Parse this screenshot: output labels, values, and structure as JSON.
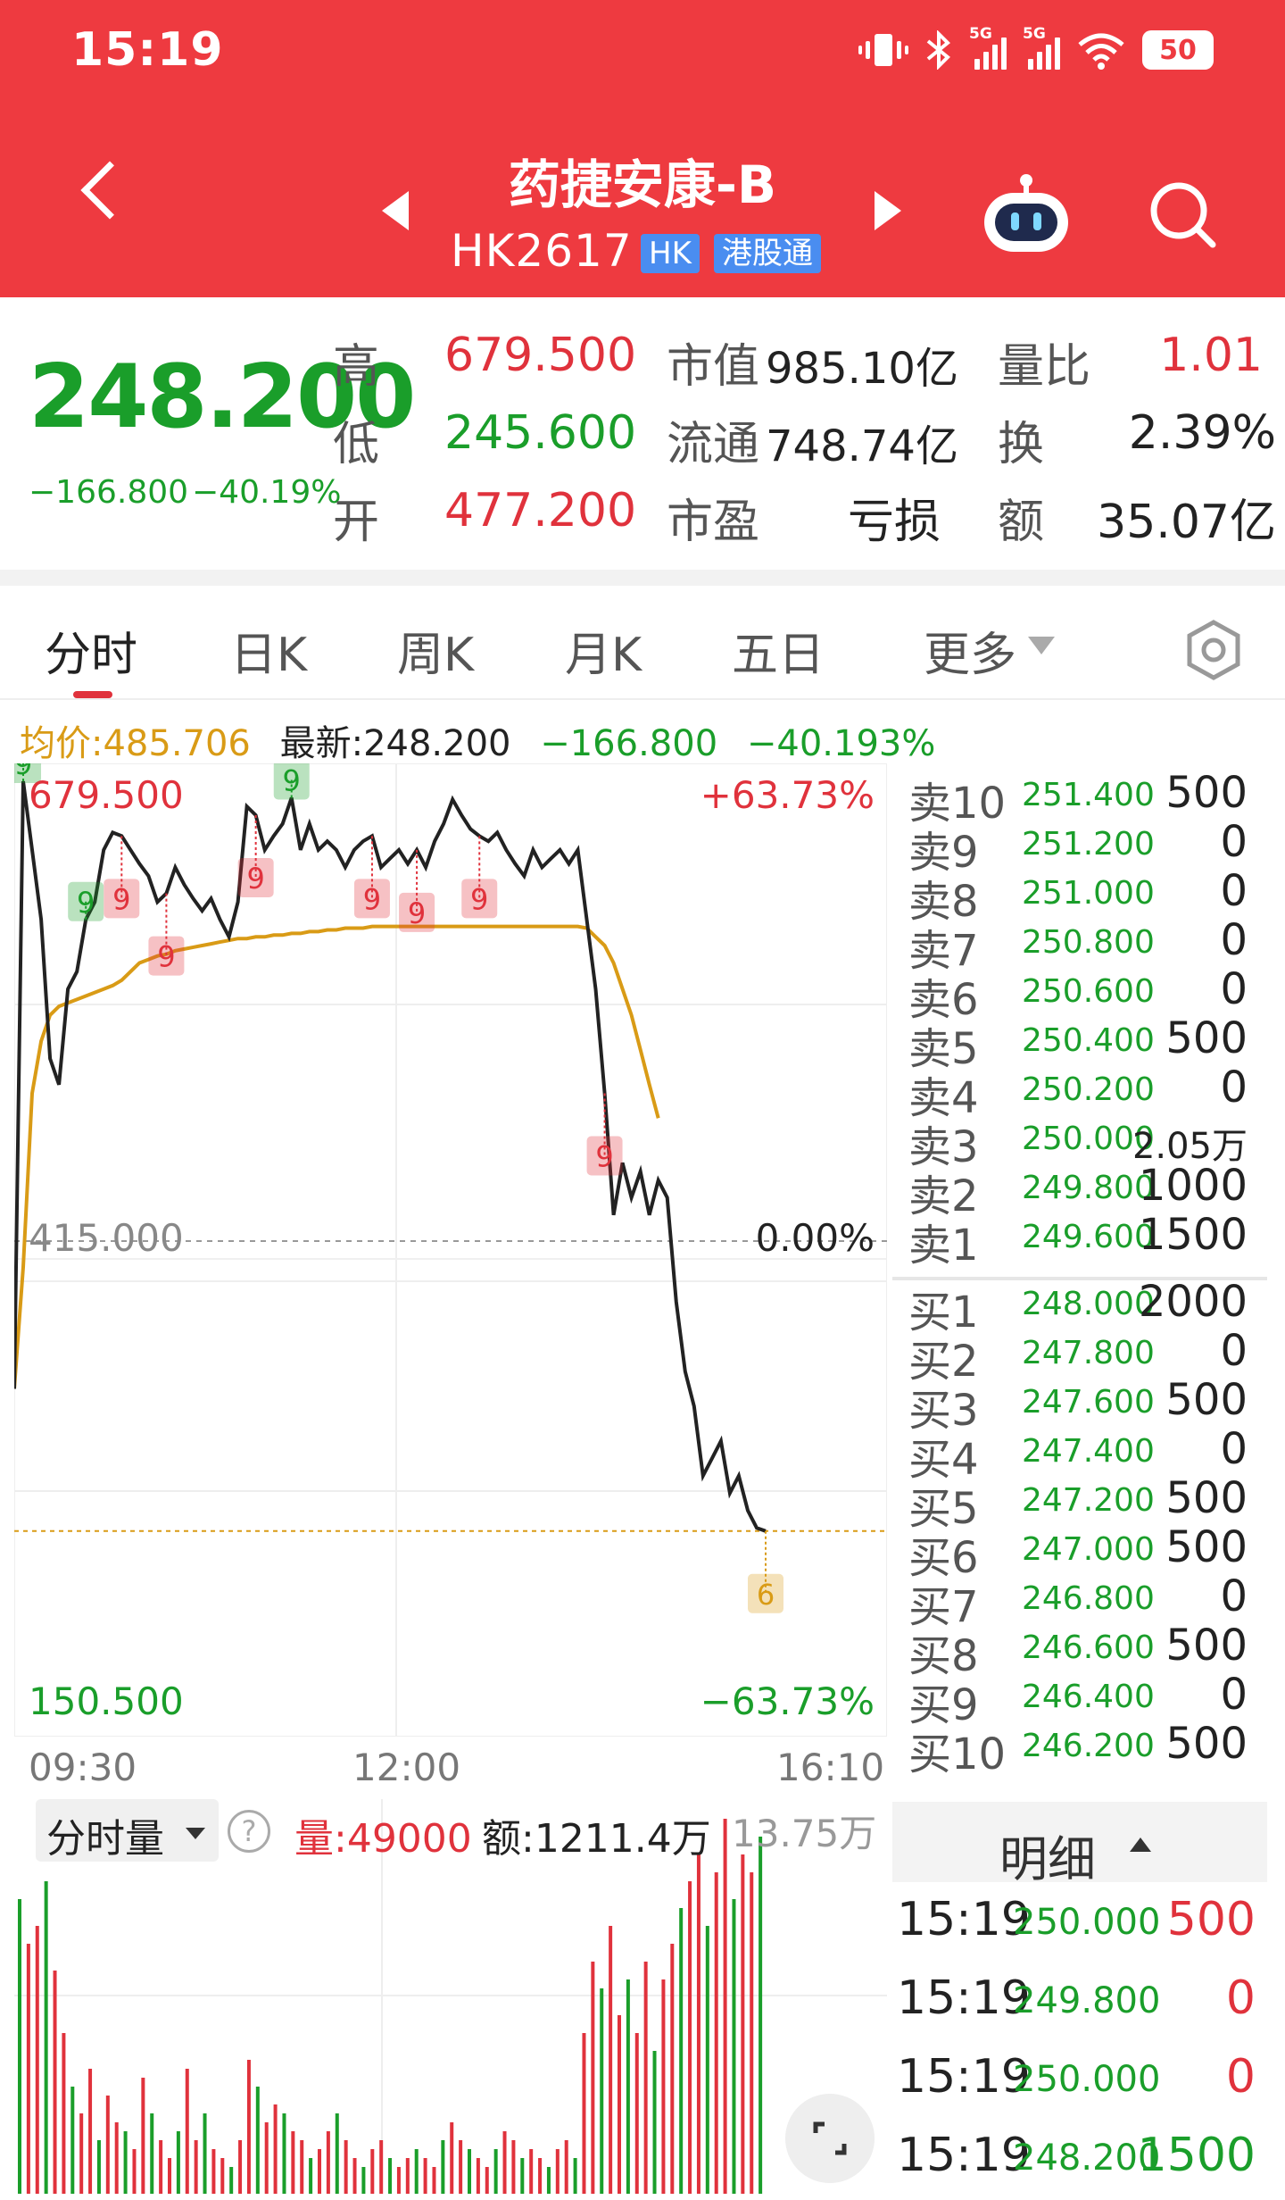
{
  "status_bar": {
    "time": "15:19",
    "battery": "50",
    "signal_tag_1": "5G",
    "signal_tag_2": "5G"
  },
  "header": {
    "name": "药捷安康-B",
    "code": "HK2617",
    "market_tag": "HK",
    "connect_tag": "港股通"
  },
  "quote": {
    "price": "248.200",
    "change": "−166.800",
    "change_pct": "−40.19%",
    "high_label": "高",
    "high": "679.500",
    "low_label": "低",
    "low": "245.600",
    "open_label": "开",
    "open": "477.200",
    "mktcap_label": "市值",
    "mktcap": "985.10亿",
    "float_label": "流通",
    "float": "748.74亿",
    "pe_label": "市盈",
    "pe": "亏损",
    "vr_label": "量比",
    "vr": "1.01",
    "turnover_label": "换",
    "turnover": "2.39%",
    "amount_label": "额",
    "amount": "35.07亿"
  },
  "tabs": [
    "分时",
    "日K",
    "周K",
    "月K",
    "五日",
    "更多"
  ],
  "info": {
    "avg": "均价:485.706",
    "latest": "最新:248.200",
    "chg": "−166.800",
    "pct": "−40.193%"
  },
  "chart": {
    "y_max": "679.500",
    "y_mid": "415.000",
    "y_min": "150.500",
    "pct_max": "+63.73%",
    "pct_mid": "0.00%",
    "pct_min": "−63.73%",
    "x_start": "09:30",
    "x_mid": "12:00",
    "x_end": "16:10"
  },
  "chart_data": {
    "type": "line",
    "ylim": [
      150.5,
      679.5
    ],
    "y_reference": 415.0,
    "series": [
      {
        "values": [
          330,
          679.5,
          640,
          600,
          520,
          505,
          560,
          570,
          600,
          610,
          640,
          650,
          648,
          640,
          632,
          625,
          610,
          615,
          630,
          620,
          612,
          605,
          612,
          600,
          590,
          610,
          665,
          660,
          640,
          648,
          655,
          670,
          640,
          655,
          640,
          645,
          640,
          630,
          640,
          645,
          648,
          630,
          635,
          640,
          632,
          640,
          630,
          645,
          655,
          669,
          660,
          652,
          648,
          645,
          650,
          640,
          632,
          625,
          640,
          630,
          635,
          640,
          632,
          640,
          600,
          560,
          500,
          430,
          460,
          440,
          455,
          430,
          450,
          440,
          380,
          340,
          320,
          280,
          290,
          300,
          270,
          280,
          260,
          250,
          248.2
        ]
      },
      {
        "values": [
          330,
          400,
          500,
          530,
          545,
          550,
          552,
          554,
          556,
          558,
          560,
          562,
          565,
          570,
          575,
          577,
          579,
          580,
          582,
          583,
          584,
          585,
          586,
          587,
          588,
          589,
          589,
          590,
          590,
          591,
          591,
          592,
          592,
          593,
          593,
          594,
          594,
          595,
          595,
          595,
          596,
          596,
          596,
          596,
          596,
          596,
          596,
          596,
          596,
          596,
          596,
          596,
          596,
          596,
          596,
          596,
          596,
          596,
          596,
          596,
          596,
          596,
          596,
          596,
          595,
          590,
          585,
          575,
          560,
          545,
          525,
          505,
          485.706
        ]
      }
    ],
    "markers": [
      "9",
      "9",
      "9",
      "9",
      "9",
      "9",
      "9",
      "9",
      "9",
      "9",
      "6"
    ]
  },
  "orderbook": {
    "asks": [
      {
        "label": "卖10",
        "price": "251.400",
        "vol": "500"
      },
      {
        "label": "卖9",
        "price": "251.200",
        "vol": "0"
      },
      {
        "label": "卖8",
        "price": "251.000",
        "vol": "0"
      },
      {
        "label": "卖7",
        "price": "250.800",
        "vol": "0"
      },
      {
        "label": "卖6",
        "price": "250.600",
        "vol": "0"
      },
      {
        "label": "卖5",
        "price": "250.400",
        "vol": "500"
      },
      {
        "label": "卖4",
        "price": "250.200",
        "vol": "0"
      },
      {
        "label": "卖3",
        "price": "250.000",
        "vol": "2.05万"
      },
      {
        "label": "卖2",
        "price": "249.800",
        "vol": "1000"
      },
      {
        "label": "卖1",
        "price": "249.600",
        "vol": "1500"
      }
    ],
    "bids": [
      {
        "label": "买1",
        "price": "248.000",
        "vol": "2000"
      },
      {
        "label": "买2",
        "price": "247.800",
        "vol": "0"
      },
      {
        "label": "买3",
        "price": "247.600",
        "vol": "500"
      },
      {
        "label": "买4",
        "price": "247.400",
        "vol": "0"
      },
      {
        "label": "买5",
        "price": "247.200",
        "vol": "500"
      },
      {
        "label": "买6",
        "price": "247.000",
        "vol": "500"
      },
      {
        "label": "买7",
        "price": "246.800",
        "vol": "0"
      },
      {
        "label": "买8",
        "price": "246.600",
        "vol": "500"
      },
      {
        "label": "买9",
        "price": "246.400",
        "vol": "0"
      },
      {
        "label": "买10",
        "price": "246.200",
        "vol": "500"
      }
    ]
  },
  "detail": {
    "label": "明细",
    "rows": [
      {
        "time": "15:19",
        "price": "250.000",
        "vol": "500",
        "color": "#e0323c"
      },
      {
        "time": "15:19",
        "price": "249.800",
        "vol": "0",
        "color": "#e0323c"
      },
      {
        "time": "15:19",
        "price": "250.000",
        "vol": "0",
        "color": "#e0323c"
      },
      {
        "time": "15:19",
        "price": "248.200",
        "vol": "1500",
        "color": "#1a9e2a"
      }
    ]
  },
  "volume": {
    "dropdown": "分时量",
    "help": "?",
    "amount": "量:49000",
    "value": "额:1211.4万",
    "max": "13.75万"
  },
  "colors": {
    "header": "#ee3a40",
    "up": "#e0323c",
    "down": "#1a9e2a",
    "avg": "#d99b16"
  }
}
